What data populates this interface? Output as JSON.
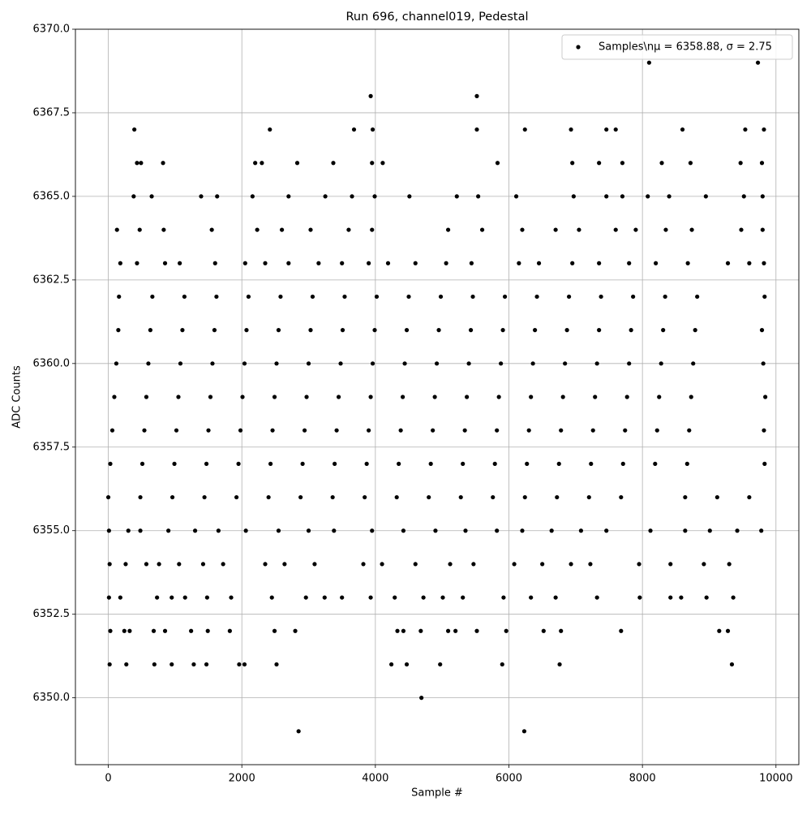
{
  "chart_data": {
    "type": "scatter",
    "title": "Run 696, channel019, Pedestal",
    "x_label": "Sample #",
    "y_label": "ADC Counts",
    "xlim": [
      -492.5,
      10342.5
    ],
    "ylim": [
      6348,
      6370
    ],
    "xticks": [
      0,
      2000,
      4000,
      6000,
      8000,
      10000
    ],
    "yticks": [
      {
        "value": 6350,
        "label": "6350.0"
      },
      6352.5,
      {
        "value": 6355,
        "label": "6355.0"
      },
      6357.5,
      {
        "value": 6360,
        "label": "6360.0"
      },
      6362.5,
      {
        "value": 6365,
        "label": "6365.0"
      },
      6367.5,
      {
        "value": 6370,
        "label": "6370.0"
      }
    ],
    "grid": true,
    "legend": "upper right",
    "x": [
      2850,
      6230,
      4690,
      20,
      270,
      690,
      950,
      1280,
      1470,
      1960,
      2040,
      2520,
      4240,
      4470,
      4970,
      5900,
      6760,
      9340,
      30,
      240,
      320,
      680,
      850,
      1240,
      1490,
      1820,
      2490,
      2800,
      4330,
      4420,
      4680,
      5090,
      5200,
      5520,
      5960,
      6520,
      6780,
      7680,
      9150,
      9280,
      10,
      180,
      730,
      950,
      1150,
      1480,
      1840,
      2450,
      2960,
      3240,
      3500,
      3930,
      4290,
      4720,
      5010,
      5310,
      5920,
      6330,
      6700,
      7320,
      7960,
      8420,
      8580,
      8960,
      9360,
      20,
      260,
      570,
      760,
      1060,
      1420,
      1720,
      2350,
      2640,
      3090,
      3820,
      4100,
      4600,
      5120,
      5470,
      6080,
      6500,
      6930,
      7220,
      7950,
      8420,
      8920,
      9300,
      10,
      300,
      480,
      900,
      1300,
      1650,
      2060,
      2550,
      3000,
      3380,
      3950,
      4420,
      4900,
      5350,
      5820,
      6200,
      6640,
      7080,
      7460,
      8120,
      8640,
      9010,
      9420,
      9780,
      0,
      480,
      960,
      1440,
      1920,
      2400,
      2880,
      3360,
      3840,
      4320,
      4800,
      5280,
      5760,
      6240,
      6720,
      7200,
      7680,
      8640,
      9120,
      9600,
      30,
      510,
      990,
      1470,
      1950,
      2430,
      2910,
      3390,
      3870,
      4350,
      4830,
      5310,
      5790,
      6270,
      6750,
      7230,
      7710,
      8190,
      8670,
      9830,
      60,
      540,
      1020,
      1500,
      1980,
      2460,
      2940,
      3420,
      3900,
      4380,
      4860,
      5340,
      5820,
      6300,
      6780,
      7260,
      7740,
      8220,
      8700,
      9820,
      90,
      570,
      1050,
      1530,
      2010,
      2490,
      2970,
      3450,
      3930,
      4410,
      4890,
      5370,
      5850,
      6330,
      6810,
      7290,
      7770,
      8250,
      8730,
      9840,
      120,
      600,
      1080,
      1560,
      2040,
      2520,
      3000,
      3480,
      3960,
      4440,
      4920,
      5400,
      5880,
      6360,
      6840,
      7320,
      7800,
      8280,
      8760,
      9810,
      150,
      630,
      1110,
      1590,
      2070,
      2550,
      3030,
      3510,
      3990,
      4470,
      4950,
      5430,
      5910,
      6390,
      6870,
      7350,
      7830,
      8310,
      8790,
      9790,
      160,
      660,
      1140,
      1620,
      2100,
      2580,
      3060,
      3540,
      4020,
      4500,
      4980,
      5460,
      5940,
      6420,
      6900,
      7380,
      7860,
      8340,
      8820,
      9830,
      180,
      430,
      850,
      1070,
      1600,
      2050,
      2350,
      2700,
      3150,
      3500,
      3900,
      4190,
      4600,
      5060,
      5440,
      6150,
      6450,
      6950,
      7350,
      7800,
      8200,
      8680,
      9280,
      9600,
      9820,
      130,
      470,
      830,
      1550,
      2230,
      2600,
      3030,
      3600,
      3950,
      5090,
      5600,
      6200,
      6700,
      7050,
      7600,
      7900,
      8350,
      8740,
      9480,
      9800,
      380,
      650,
      1390,
      1630,
      2160,
      2700,
      3250,
      3650,
      3990,
      4510,
      5220,
      5540,
      6110,
      6970,
      7460,
      7700,
      8080,
      8400,
      8950,
      9520,
      9800,
      430,
      490,
      820,
      2200,
      2300,
      2830,
      3370,
      3950,
      4110,
      5830,
      6950,
      7350,
      7700,
      8290,
      8720,
      9470,
      9790,
      390,
      2420,
      3680,
      3960,
      5520,
      6240,
      6930,
      7460,
      7600,
      8600,
      9540,
      9820,
      3930,
      5520,
      8100,
      9730
    ],
    "series": [
      {
        "name": "Samples\\nμ = 6358.88, σ = 2.75",
        "color": "#000000",
        "values": [
          6349,
          6349,
          6350,
          6351,
          6351,
          6351,
          6351,
          6351,
          6351,
          6351,
          6351,
          6351,
          6351,
          6351,
          6351,
          6351,
          6351,
          6351,
          6352,
          6352,
          6352,
          6352,
          6352,
          6352,
          6352,
          6352,
          6352,
          6352,
          6352,
          6352,
          6352,
          6352,
          6352,
          6352,
          6352,
          6352,
          6352,
          6352,
          6352,
          6352,
          6353,
          6353,
          6353,
          6353,
          6353,
          6353,
          6353,
          6353,
          6353,
          6353,
          6353,
          6353,
          6353,
          6353,
          6353,
          6353,
          6353,
          6353,
          6353,
          6353,
          6353,
          6353,
          6353,
          6353,
          6353,
          6354,
          6354,
          6354,
          6354,
          6354,
          6354,
          6354,
          6354,
          6354,
          6354,
          6354,
          6354,
          6354,
          6354,
          6354,
          6354,
          6354,
          6354,
          6354,
          6354,
          6354,
          6354,
          6354,
          6355,
          6355,
          6355,
          6355,
          6355,
          6355,
          6355,
          6355,
          6355,
          6355,
          6355,
          6355,
          6355,
          6355,
          6355,
          6355,
          6355,
          6355,
          6355,
          6355,
          6355,
          6355,
          6355,
          6355,
          6356,
          6356,
          6356,
          6356,
          6356,
          6356,
          6356,
          6356,
          6356,
          6356,
          6356,
          6356,
          6356,
          6356,
          6356,
          6356,
          6356,
          6356,
          6356,
          6356,
          6357,
          6357,
          6357,
          6357,
          6357,
          6357,
          6357,
          6357,
          6357,
          6357,
          6357,
          6357,
          6357,
          6357,
          6357,
          6357,
          6357,
          6357,
          6357,
          6357,
          6358,
          6358,
          6358,
          6358,
          6358,
          6358,
          6358,
          6358,
          6358,
          6358,
          6358,
          6358,
          6358,
          6358,
          6358,
          6358,
          6358,
          6358,
          6358,
          6358,
          6359,
          6359,
          6359,
          6359,
          6359,
          6359,
          6359,
          6359,
          6359,
          6359,
          6359,
          6359,
          6359,
          6359,
          6359,
          6359,
          6359,
          6359,
          6359,
          6359,
          6360,
          6360,
          6360,
          6360,
          6360,
          6360,
          6360,
          6360,
          6360,
          6360,
          6360,
          6360,
          6360,
          6360,
          6360,
          6360,
          6360,
          6360,
          6360,
          6360,
          6361,
          6361,
          6361,
          6361,
          6361,
          6361,
          6361,
          6361,
          6361,
          6361,
          6361,
          6361,
          6361,
          6361,
          6361,
          6361,
          6361,
          6361,
          6361,
          6361,
          6362,
          6362,
          6362,
          6362,
          6362,
          6362,
          6362,
          6362,
          6362,
          6362,
          6362,
          6362,
          6362,
          6362,
          6362,
          6362,
          6362,
          6362,
          6362,
          6362,
          6363,
          6363,
          6363,
          6363,
          6363,
          6363,
          6363,
          6363,
          6363,
          6363,
          6363,
          6363,
          6363,
          6363,
          6363,
          6363,
          6363,
          6363,
          6363,
          6363,
          6363,
          6363,
          6363,
          6363,
          6363,
          6364,
          6364,
          6364,
          6364,
          6364,
          6364,
          6364,
          6364,
          6364,
          6364,
          6364,
          6364,
          6364,
          6364,
          6364,
          6364,
          6364,
          6364,
          6364,
          6364,
          6365,
          6365,
          6365,
          6365,
          6365,
          6365,
          6365,
          6365,
          6365,
          6365,
          6365,
          6365,
          6365,
          6365,
          6365,
          6365,
          6365,
          6365,
          6365,
          6365,
          6365,
          6366,
          6366,
          6366,
          6366,
          6366,
          6366,
          6366,
          6366,
          6366,
          6366,
          6366,
          6366,
          6366,
          6366,
          6366,
          6366,
          6366,
          6367,
          6367,
          6367,
          6367,
          6367,
          6367,
          6367,
          6367,
          6367,
          6367,
          6367,
          6367,
          6368,
          6368,
          6369,
          6369
        ]
      }
    ]
  }
}
